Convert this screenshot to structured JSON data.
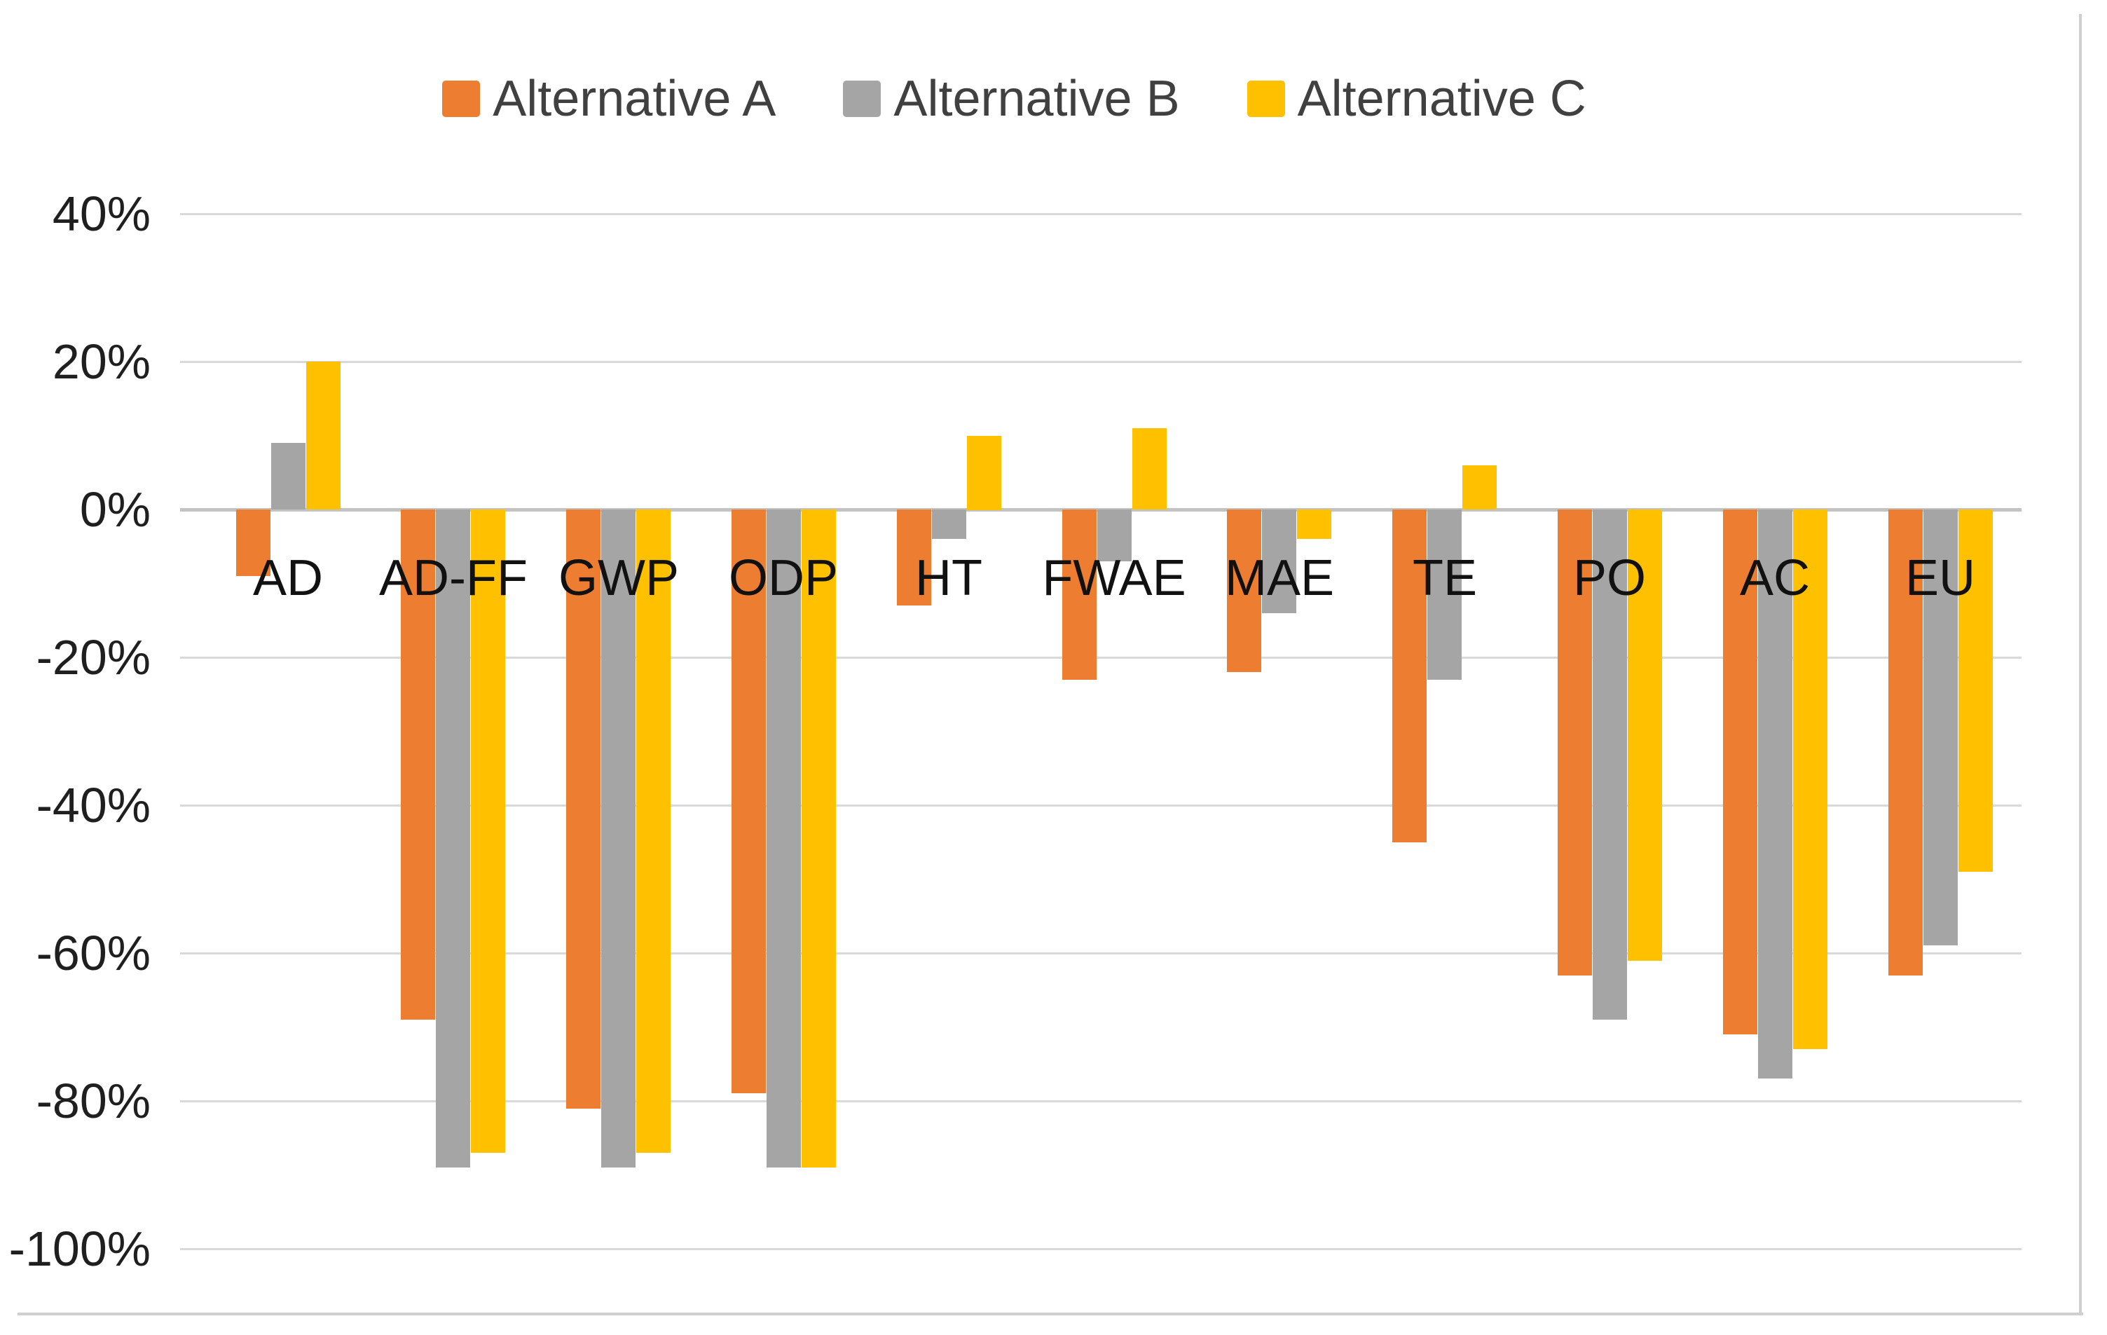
{
  "chart_data": {
    "type": "bar",
    "title": "",
    "categories": [
      "AD",
      "AD-FF",
      "GWP",
      "ODP",
      "HT",
      "FWAE",
      "MAE",
      "TE",
      "PO",
      "AC",
      "EU"
    ],
    "series": [
      {
        "name": "Alternative A",
        "color": "#ED7D31",
        "values": [
          -9,
          -69,
          -81,
          -79,
          -13,
          -23,
          -22,
          -45,
          -63,
          -71,
          -63
        ]
      },
      {
        "name": "Alternative B",
        "color": "#A5A5A5",
        "values": [
          9,
          -89,
          -89,
          -89,
          -4,
          -7,
          -14,
          -23,
          -69,
          -77,
          -59
        ]
      },
      {
        "name": "Alternative C",
        "color": "#FFC000",
        "values": [
          20,
          -87,
          -87,
          -89,
          10,
          11,
          -4,
          6,
          -61,
          -73,
          -49
        ]
      }
    ],
    "y_axis": {
      "unit": "%",
      "min": -100,
      "max": 40,
      "tick_values": [
        40,
        20,
        0,
        -20,
        -40,
        -60,
        -80,
        -100
      ],
      "ticks": [
        "40%",
        "20%",
        "0%",
        "-20%",
        "-40%",
        "-60%",
        "-80%",
        "-100%"
      ]
    },
    "xlabel": "",
    "ylabel": "",
    "grid": true,
    "legend_position": "top"
  },
  "colors": {
    "gridline": "#D9D9D9",
    "zero_axis_line": "#C3C3C3",
    "frame_border": "#CFCFCF",
    "tick_label_text": "#1F1F1F",
    "category_label_text": "#111111",
    "legend_text": "#404040",
    "background": "#FFFFFF"
  }
}
